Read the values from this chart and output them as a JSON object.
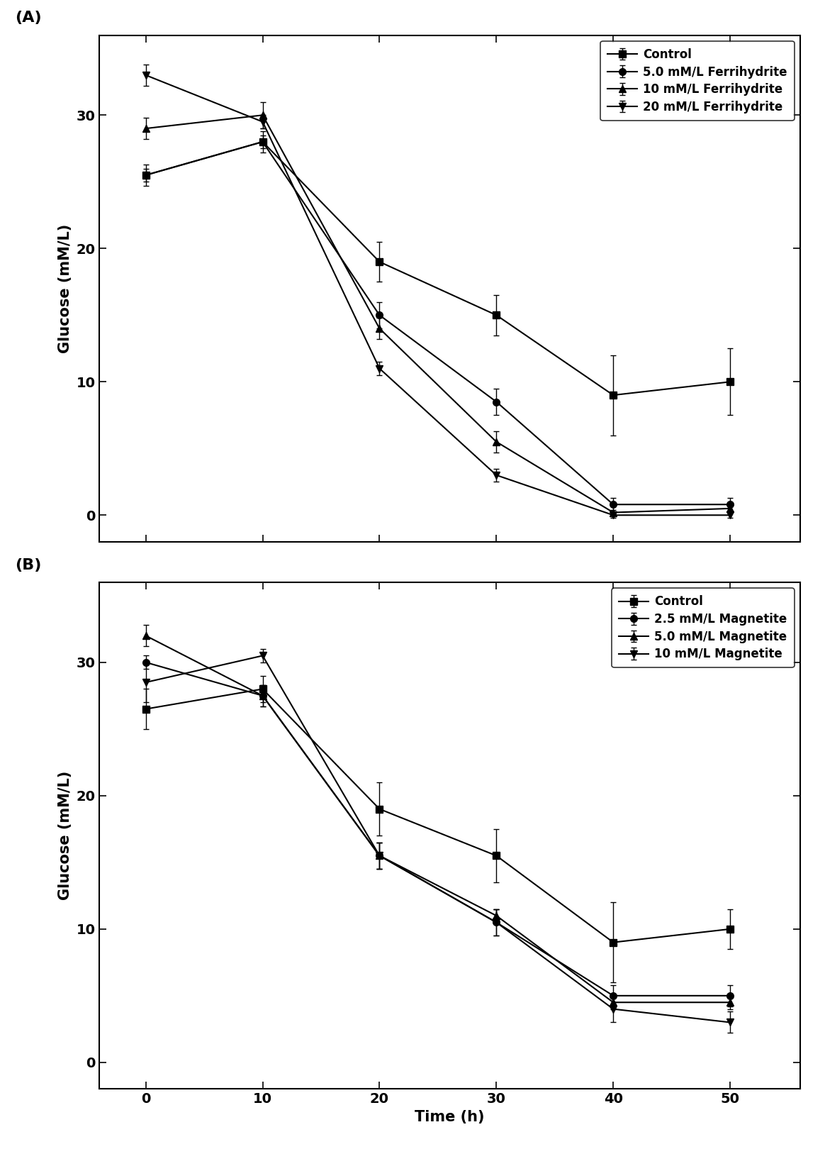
{
  "panel_A": {
    "title": "(A)",
    "x": [
      0,
      10,
      20,
      30,
      40,
      50
    ],
    "series": [
      {
        "label": "Control",
        "y": [
          25.5,
          28.0,
          19.0,
          15.0,
          9.0,
          10.0
        ],
        "yerr": [
          0.8,
          0.8,
          1.5,
          1.5,
          3.0,
          2.5
        ],
        "marker": "s",
        "linestyle": "-"
      },
      {
        "label": "5.0 mM/L Ferrihydrite",
        "y": [
          25.5,
          28.0,
          15.0,
          8.5,
          0.8,
          0.8
        ],
        "yerr": [
          0.5,
          0.5,
          1.0,
          1.0,
          0.5,
          0.5
        ],
        "marker": "o",
        "linestyle": "-"
      },
      {
        "label": "10 mM/L Ferrihydrite",
        "y": [
          29.0,
          30.0,
          14.0,
          5.5,
          0.2,
          0.5
        ],
        "yerr": [
          0.8,
          1.0,
          0.8,
          0.8,
          0.2,
          0.2
        ],
        "marker": "^",
        "linestyle": "-"
      },
      {
        "label": "20 mM/L Ferrihydrite",
        "y": [
          33.0,
          29.5,
          11.0,
          3.0,
          0.0,
          0.0
        ],
        "yerr": [
          0.8,
          0.5,
          0.5,
          0.5,
          0.2,
          0.2
        ],
        "marker": "v",
        "linestyle": "-"
      }
    ],
    "ylabel": "Glucose (mM/L)",
    "ylim": [
      -2,
      36
    ],
    "yticks": [
      0,
      10,
      20,
      30
    ],
    "show_xticklabels": false
  },
  "panel_B": {
    "title": "(B)",
    "x": [
      0,
      10,
      20,
      30,
      40,
      50
    ],
    "series": [
      {
        "label": "Control",
        "y": [
          26.5,
          28.0,
          19.0,
          15.5,
          9.0,
          10.0
        ],
        "yerr": [
          1.5,
          1.0,
          2.0,
          2.0,
          3.0,
          1.5
        ],
        "marker": "s",
        "linestyle": "-"
      },
      {
        "label": "2.5 mM/L Magnetite",
        "y": [
          30.0,
          27.5,
          15.5,
          10.5,
          5.0,
          5.0
        ],
        "yerr": [
          0.5,
          0.8,
          1.0,
          1.0,
          0.8,
          0.8
        ],
        "marker": "o",
        "linestyle": "-"
      },
      {
        "label": "5.0 mM/L Magnetite",
        "y": [
          32.0,
          27.5,
          15.5,
          11.0,
          4.5,
          4.5
        ],
        "yerr": [
          0.8,
          0.8,
          1.0,
          0.5,
          0.5,
          0.5
        ],
        "marker": "^",
        "linestyle": "-"
      },
      {
        "label": "10 mM/L Magnetite",
        "y": [
          28.5,
          30.5,
          15.5,
          10.5,
          4.0,
          3.0
        ],
        "yerr": [
          1.5,
          0.5,
          1.0,
          1.0,
          1.0,
          0.8
        ],
        "marker": "v",
        "linestyle": "-"
      }
    ],
    "ylabel": "Glucose (mM/L)",
    "xlabel": "Time (h)",
    "ylim": [
      -2,
      36
    ],
    "yticks": [
      0,
      10,
      20,
      30
    ],
    "show_xticklabels": true
  },
  "color": "#000000",
  "markersize": 7,
  "linewidth": 1.5,
  "capsize": 3,
  "elinewidth": 1.0,
  "legend_fontsize": 12,
  "axis_label_fontsize": 15,
  "tick_labelsize": 14,
  "panel_label_fontsize": 16
}
